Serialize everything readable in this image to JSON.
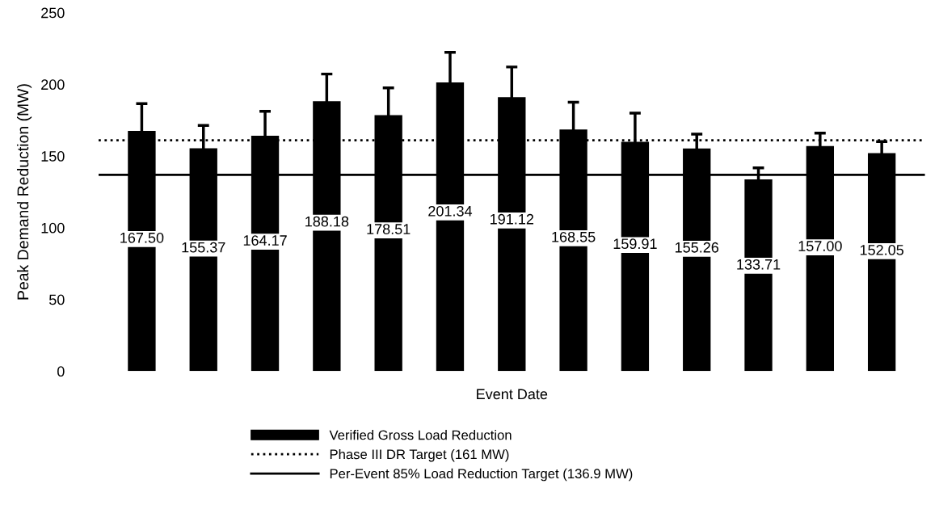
{
  "chart_data": {
    "type": "bar",
    "xlabel": "Event Date",
    "ylabel": "Peak Demand Reduction (MW)",
    "categories": [
      null,
      null,
      null,
      null,
      null,
      null,
      null,
      null,
      null,
      null,
      null,
      null,
      null
    ],
    "series": [
      {
        "name": "Verified Gross Load Reduction",
        "color": "#000000",
        "values": [
          167.5,
          155.37,
          164.17,
          188.18,
          178.51,
          201.34,
          191.12,
          168.55,
          159.91,
          155.26,
          133.71,
          157.0,
          152.05
        ],
        "errors": [
          19,
          16,
          17,
          19,
          19,
          21,
          21,
          19,
          20,
          10,
          8,
          9,
          8
        ],
        "value_labels": [
          "167.50",
          "155.37",
          "164.17",
          "188.18",
          "178.51",
          "201.34",
          "191.12",
          "168.55",
          "159.91",
          "155.26",
          "133.71",
          "157.00",
          "152.05"
        ]
      }
    ],
    "ylim": [
      0,
      250
    ],
    "yticks": [
      0,
      50,
      100,
      150,
      200,
      250
    ],
    "ref_lines": [
      {
        "axis": "y",
        "value": 161,
        "label": "Phase III DR Target (161 MW)",
        "color": "#000000",
        "line_style": "dotted"
      },
      {
        "axis": "y",
        "value": 136.9,
        "label": "Per-Event 85% Load Reduction Target (136.9 MW)",
        "color": "#000000",
        "line_style": "solid"
      }
    ],
    "grid": false,
    "legend": "bottom"
  }
}
